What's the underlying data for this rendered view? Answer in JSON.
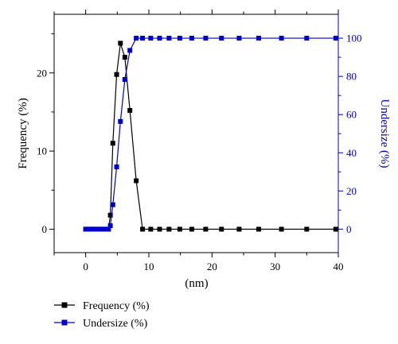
{
  "chart_data": {
    "type": "line",
    "xlabel": "(nm)",
    "xlim": [
      -5,
      40
    ],
    "x_ticks": [
      0,
      10,
      20,
      30,
      40
    ],
    "ylabel_left": "Frequency (%)",
    "ylim_left": [
      -3,
      27.5
    ],
    "y_ticks_left": [
      0,
      10,
      20
    ],
    "ylabel_right": "Undersize (%)",
    "ylim_right": [
      -12.3,
      112.5
    ],
    "y_ticks_right": [
      0,
      20,
      40,
      60,
      80,
      100
    ],
    "grid": false,
    "legend_position": "bottom-left",
    "series": [
      {
        "name": "Frequency (%)",
        "axis": "left",
        "color": "#000000",
        "points": [
          [
            0,
            0
          ],
          [
            0.4,
            0
          ],
          [
            0.8,
            0
          ],
          [
            1.2,
            0
          ],
          [
            1.6,
            0
          ],
          [
            2.0,
            0
          ],
          [
            2.4,
            0
          ],
          [
            2.8,
            0
          ],
          [
            3.2,
            0
          ],
          [
            3.6,
            0
          ],
          [
            3.9,
            1.8
          ],
          [
            4.3,
            11.0
          ],
          [
            4.9,
            19.8
          ],
          [
            5.5,
            23.8
          ],
          [
            6.2,
            22.0
          ],
          [
            7.0,
            15.2
          ],
          [
            8.0,
            6.2
          ],
          [
            9.0,
            0
          ],
          [
            10.3,
            0
          ],
          [
            11.7,
            0
          ],
          [
            13.2,
            0
          ],
          [
            14.9,
            0
          ],
          [
            16.8,
            0
          ],
          [
            19.0,
            0
          ],
          [
            21.5,
            0
          ],
          [
            24.3,
            0
          ],
          [
            27.4,
            0
          ],
          [
            31.0,
            0
          ],
          [
            35.0,
            0
          ],
          [
            39.6,
            0
          ]
        ]
      },
      {
        "name": "Undersize (%)",
        "axis": "right",
        "color": "#0000cc",
        "points": [
          [
            0,
            0
          ],
          [
            0.4,
            0
          ],
          [
            0.8,
            0
          ],
          [
            1.2,
            0
          ],
          [
            1.6,
            0
          ],
          [
            2.0,
            0
          ],
          [
            2.4,
            0
          ],
          [
            2.8,
            0
          ],
          [
            3.2,
            0
          ],
          [
            3.6,
            0
          ],
          [
            3.9,
            1.8
          ],
          [
            4.3,
            12.8
          ],
          [
            4.9,
            32.6
          ],
          [
            5.5,
            56.4
          ],
          [
            6.2,
            78.4
          ],
          [
            7.0,
            93.6
          ],
          [
            8.0,
            100
          ],
          [
            9.0,
            100
          ],
          [
            10.3,
            100
          ],
          [
            11.7,
            100
          ],
          [
            13.2,
            100
          ],
          [
            14.9,
            100
          ],
          [
            16.8,
            100
          ],
          [
            19.0,
            100
          ],
          [
            21.5,
            100
          ],
          [
            24.3,
            100
          ],
          [
            27.4,
            100
          ],
          [
            31.0,
            100
          ],
          [
            35.0,
            100
          ],
          [
            39.6,
            100
          ]
        ]
      }
    ]
  }
}
